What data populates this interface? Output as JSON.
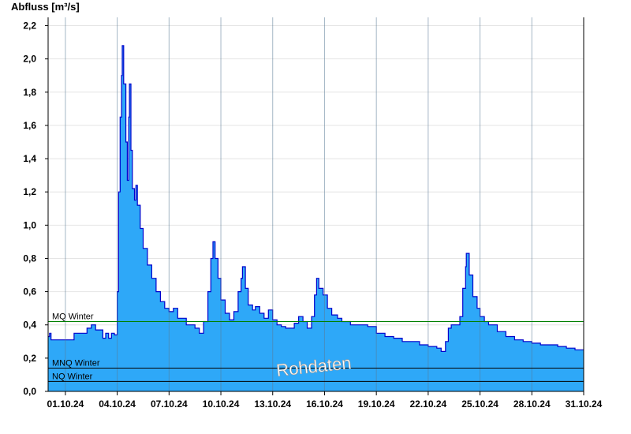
{
  "chart_data": {
    "type": "area",
    "ylabel": "Abfluss [m³/s]",
    "ylim": [
      0,
      2.25
    ],
    "yticks": [
      0.0,
      0.2,
      0.4,
      0.6,
      0.8,
      1.0,
      1.2,
      1.4,
      1.6,
      1.8,
      2.0,
      2.2
    ],
    "ytick_labels": [
      "0,0",
      "0,2",
      "0,4",
      "0,6",
      "0,8",
      "1,0",
      "1,2",
      "1,4",
      "1,6",
      "1,8",
      "2,0",
      "2,2"
    ],
    "xlim": [
      "2024-09-30",
      "2024-10-31"
    ],
    "xticks": [
      "2024-10-01",
      "2024-10-04",
      "2024-10-07",
      "2024-10-10",
      "2024-10-13",
      "2024-10-16",
      "2024-10-19",
      "2024-10-22",
      "2024-10-25",
      "2024-10-28",
      "2024-10-31"
    ],
    "xtick_labels": [
      "01.10.24",
      "04.10.24",
      "07.10.24",
      "10.10.24",
      "13.10.24",
      "16.10.24",
      "19.10.24",
      "22.10.24",
      "25.10.24",
      "28.10.24",
      "31.10.24"
    ],
    "grid": true,
    "colors": {
      "fill": "#2ea8f8",
      "line": "#0000cc",
      "mq": "#008000",
      "ref": "#000000"
    },
    "series": [
      {
        "points": [
          [
            "2024-09-30T00:00",
            0.33
          ],
          [
            "2024-09-30T02:00",
            0.35
          ],
          [
            "2024-09-30T04:00",
            0.31
          ],
          [
            "2024-09-30T12:00",
            0.31
          ],
          [
            "2024-10-01T00:00",
            0.31
          ],
          [
            "2024-10-01T08:00",
            0.31
          ],
          [
            "2024-10-01T12:00",
            0.35
          ],
          [
            "2024-10-02T00:00",
            0.35
          ],
          [
            "2024-10-02T06:00",
            0.38
          ],
          [
            "2024-10-02T12:00",
            0.4
          ],
          [
            "2024-10-02T18:00",
            0.37
          ],
          [
            "2024-10-03T00:00",
            0.37
          ],
          [
            "2024-10-03T04:00",
            0.32
          ],
          [
            "2024-10-03T08:00",
            0.35
          ],
          [
            "2024-10-03T12:00",
            0.32
          ],
          [
            "2024-10-03T16:00",
            0.35
          ],
          [
            "2024-10-03T20:00",
            0.34
          ],
          [
            "2024-10-04T00:00",
            0.6
          ],
          [
            "2024-10-04T02:00",
            1.2
          ],
          [
            "2024-10-04T04:00",
            1.65
          ],
          [
            "2024-10-04T06:00",
            1.9
          ],
          [
            "2024-10-04T07:00",
            2.08
          ],
          [
            "2024-10-04T09:00",
            1.85
          ],
          [
            "2024-10-04T12:00",
            1.5
          ],
          [
            "2024-10-04T14:00",
            1.27
          ],
          [
            "2024-10-04T16:00",
            1.65
          ],
          [
            "2024-10-04T17:00",
            1.85
          ],
          [
            "2024-10-04T19:00",
            1.45
          ],
          [
            "2024-10-04T21:00",
            1.22
          ],
          [
            "2024-10-05T00:00",
            1.15
          ],
          [
            "2024-10-05T02:00",
            1.24
          ],
          [
            "2024-10-05T04:00",
            1.12
          ],
          [
            "2024-10-05T08:00",
            0.98
          ],
          [
            "2024-10-05T12:00",
            0.86
          ],
          [
            "2024-10-05T18:00",
            0.76
          ],
          [
            "2024-10-06T00:00",
            0.68
          ],
          [
            "2024-10-06T06:00",
            0.6
          ],
          [
            "2024-10-06T12:00",
            0.54
          ],
          [
            "2024-10-06T18:00",
            0.5
          ],
          [
            "2024-10-07T00:00",
            0.48
          ],
          [
            "2024-10-07T06:00",
            0.5
          ],
          [
            "2024-10-07T12:00",
            0.44
          ],
          [
            "2024-10-08T00:00",
            0.4
          ],
          [
            "2024-10-08T12:00",
            0.38
          ],
          [
            "2024-10-08T18:00",
            0.35
          ],
          [
            "2024-10-09T00:00",
            0.42
          ],
          [
            "2024-10-09T06:00",
            0.6
          ],
          [
            "2024-10-09T10:00",
            0.8
          ],
          [
            "2024-10-09T13:00",
            0.9
          ],
          [
            "2024-10-09T16:00",
            0.8
          ],
          [
            "2024-10-09T20:00",
            0.68
          ],
          [
            "2024-10-10T00:00",
            0.55
          ],
          [
            "2024-10-10T06:00",
            0.47
          ],
          [
            "2024-10-10T12:00",
            0.43
          ],
          [
            "2024-10-10T18:00",
            0.48
          ],
          [
            "2024-10-11T00:00",
            0.6
          ],
          [
            "2024-10-11T04:00",
            0.68
          ],
          [
            "2024-10-11T06:00",
            0.75
          ],
          [
            "2024-10-11T10:00",
            0.62
          ],
          [
            "2024-10-11T14:00",
            0.52
          ],
          [
            "2024-10-11T20:00",
            0.49
          ],
          [
            "2024-10-12T00:00",
            0.51
          ],
          [
            "2024-10-12T06:00",
            0.47
          ],
          [
            "2024-10-12T12:00",
            0.44
          ],
          [
            "2024-10-12T18:00",
            0.49
          ],
          [
            "2024-10-13T00:00",
            0.43
          ],
          [
            "2024-10-13T06:00",
            0.4
          ],
          [
            "2024-10-13T12:00",
            0.39
          ],
          [
            "2024-10-13T18:00",
            0.38
          ],
          [
            "2024-10-14T00:00",
            0.38
          ],
          [
            "2024-10-14T06:00",
            0.41
          ],
          [
            "2024-10-14T12:00",
            0.45
          ],
          [
            "2024-10-14T18:00",
            0.42
          ],
          [
            "2024-10-15T00:00",
            0.38
          ],
          [
            "2024-10-15T06:00",
            0.45
          ],
          [
            "2024-10-15T10:00",
            0.58
          ],
          [
            "2024-10-15T13:00",
            0.68
          ],
          [
            "2024-10-15T16:00",
            0.62
          ],
          [
            "2024-10-15T22:00",
            0.58
          ],
          [
            "2024-10-16T04:00",
            0.5
          ],
          [
            "2024-10-16T10:00",
            0.46
          ],
          [
            "2024-10-16T18:00",
            0.44
          ],
          [
            "2024-10-17T00:00",
            0.42
          ],
          [
            "2024-10-17T12:00",
            0.4
          ],
          [
            "2024-10-18T00:00",
            0.4
          ],
          [
            "2024-10-18T12:00",
            0.39
          ],
          [
            "2024-10-19T00:00",
            0.35
          ],
          [
            "2024-10-19T12:00",
            0.33
          ],
          [
            "2024-10-20T00:00",
            0.32
          ],
          [
            "2024-10-20T12:00",
            0.3
          ],
          [
            "2024-10-21T00:00",
            0.3
          ],
          [
            "2024-10-21T12:00",
            0.28
          ],
          [
            "2024-10-22T00:00",
            0.27
          ],
          [
            "2024-10-22T12:00",
            0.26
          ],
          [
            "2024-10-22T18:00",
            0.24
          ],
          [
            "2024-10-23T00:00",
            0.3
          ],
          [
            "2024-10-23T04:00",
            0.38
          ],
          [
            "2024-10-23T08:00",
            0.4
          ],
          [
            "2024-10-23T16:00",
            0.4
          ],
          [
            "2024-10-23T20:00",
            0.45
          ],
          [
            "2024-10-24T00:00",
            0.62
          ],
          [
            "2024-10-24T04:00",
            0.75
          ],
          [
            "2024-10-24T05:00",
            0.83
          ],
          [
            "2024-10-24T09:00",
            0.7
          ],
          [
            "2024-10-24T14:00",
            0.57
          ],
          [
            "2024-10-24T20:00",
            0.5
          ],
          [
            "2024-10-25T00:00",
            0.45
          ],
          [
            "2024-10-25T06:00",
            0.42
          ],
          [
            "2024-10-25T12:00",
            0.4
          ],
          [
            "2024-10-26T00:00",
            0.36
          ],
          [
            "2024-10-26T12:00",
            0.33
          ],
          [
            "2024-10-27T00:00",
            0.31
          ],
          [
            "2024-10-27T12:00",
            0.3
          ],
          [
            "2024-10-28T00:00",
            0.29
          ],
          [
            "2024-10-28T12:00",
            0.28
          ],
          [
            "2024-10-29T00:00",
            0.28
          ],
          [
            "2024-10-29T12:00",
            0.27
          ],
          [
            "2024-10-30T00:00",
            0.26
          ],
          [
            "2024-10-30T12:00",
            0.25
          ],
          [
            "2024-10-31T00:00",
            0.25
          ]
        ]
      }
    ],
    "reference_lines": [
      {
        "label": "MQ Winter",
        "value": 0.42,
        "color": "#008000"
      },
      {
        "label": "MNQ Winter",
        "value": 0.14,
        "color": "#000000"
      },
      {
        "label": "NQ Winter",
        "value": 0.06,
        "color": "#000000"
      }
    ],
    "watermark": "Rohdaten"
  }
}
